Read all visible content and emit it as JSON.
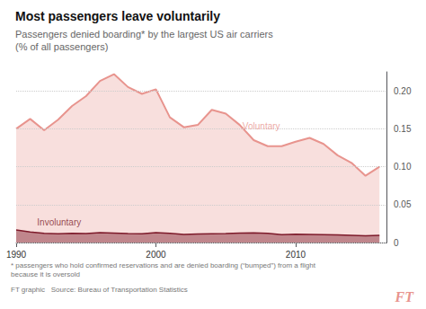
{
  "chart_data": {
    "type": "line",
    "title": "Most passengers leave voluntarily",
    "subtitle": "Passengers denied boarding* by the largest US air carriers\n(% of all passengers)",
    "footnote": "* passengers who hold confirmed reservations and are denied boarding (“bumped”) from a flight\nbecause it is oversold",
    "source": "FT graphic   Source: Bureau of Transportation Statistics",
    "watermark": {
      "text": "FT",
      "color": "#e8948e"
    },
    "x": [
      1990,
      1991,
      1992,
      1993,
      1994,
      1995,
      1996,
      1997,
      1998,
      1999,
      2000,
      2001,
      2002,
      2003,
      2004,
      2005,
      2006,
      2007,
      2008,
      2009,
      2010,
      2011,
      2012,
      2013,
      2014,
      2015,
      2016
    ],
    "series": [
      {
        "name": "Voluntary",
        "color": "#e8948e",
        "values": [
          0.15,
          0.163,
          0.148,
          0.162,
          0.18,
          0.193,
          0.213,
          0.222,
          0.205,
          0.196,
          0.202,
          0.165,
          0.152,
          0.155,
          0.175,
          0.17,
          0.155,
          0.135,
          0.127,
          0.127,
          0.133,
          0.138,
          0.13,
          0.115,
          0.105,
          0.088,
          0.1
        ]
      },
      {
        "name": "Involuntary",
        "color": "#7d1a2a",
        "values": [
          0.0165,
          0.014,
          0.012,
          0.0115,
          0.012,
          0.0118,
          0.013,
          0.0125,
          0.0118,
          0.0115,
          0.013,
          0.0122,
          0.0108,
          0.0112,
          0.0115,
          0.0118,
          0.0125,
          0.0128,
          0.0122,
          0.0105,
          0.011,
          0.0108,
          0.0105,
          0.01,
          0.0095,
          0.009,
          0.0095
        ]
      }
    ],
    "annotations": [
      {
        "text": "Voluntary",
        "x": 2006.2,
        "y": 0.148,
        "color": "#e8948e"
      },
      {
        "text": "Involuntary",
        "x": 1991.5,
        "y": 0.021,
        "color": "#7d1a2a"
      }
    ],
    "xlim": [
      1990,
      2016.5
    ],
    "xticks": [
      1990,
      2000,
      2010
    ],
    "ylim": [
      0,
      0.225
    ],
    "yticks": [
      0,
      0.05,
      {
        "value": 0.1,
        "label": "0.10"
      },
      0.15,
      {
        "value": 0.2,
        "label": "0.20"
      }
    ],
    "grid": true
  }
}
